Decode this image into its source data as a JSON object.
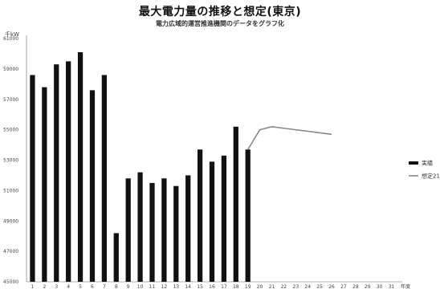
{
  "chart_data": {
    "type": "bar",
    "title": "最大電力量の推移と想定(東京)",
    "subtitle": "電力広域的運営推進機関のデータをグラフ化",
    "ylabel": "千kW",
    "xlabel": "年度",
    "ylim": [
      45000,
      61000
    ],
    "yticks": [
      45000,
      47000,
      49000,
      51000,
      53000,
      55000,
      57000,
      59000,
      61000
    ],
    "categories": [
      "1",
      "2",
      "3",
      "4",
      "5",
      "6",
      "7",
      "8",
      "9",
      "10",
      "11",
      "12",
      "13",
      "14",
      "15",
      "16",
      "17",
      "18",
      "19",
      "20",
      "21",
      "22",
      "23",
      "24",
      "25",
      "26",
      "27",
      "28",
      "29",
      "30",
      "31"
    ],
    "series": [
      {
        "name": "実績",
        "type": "bar",
        "color": "#111111",
        "values": [
          58600,
          57800,
          59300,
          59500,
          60100,
          57600,
          58600,
          48200,
          51800,
          52200,
          51500,
          51800,
          51300,
          52000,
          53700,
          52900,
          53300,
          55200,
          53700,
          null,
          null,
          null,
          null,
          null,
          null,
          null,
          null,
          null,
          null,
          null,
          null
        ]
      },
      {
        "name": "想定21",
        "type": "line",
        "color": "#888888",
        "values": [
          null,
          null,
          null,
          null,
          null,
          null,
          null,
          null,
          null,
          null,
          null,
          null,
          null,
          null,
          null,
          null,
          null,
          null,
          53700,
          55000,
          55200,
          55100,
          55000,
          54900,
          54800,
          54700,
          null,
          null,
          null,
          null,
          null
        ]
      }
    ],
    "grid": false,
    "legend_position": "right"
  }
}
